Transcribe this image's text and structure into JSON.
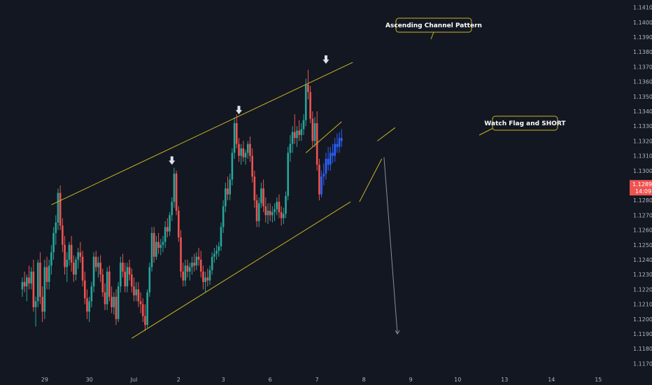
{
  "chart_data": {
    "type": "candlestick",
    "instrument_price": "1.12899",
    "countdown": "14:09",
    "ylim": [
      1.1165,
      1.1415
    ],
    "y_ticks": [
      "1.14100",
      "1.14000",
      "1.13900",
      "1.13800",
      "1.13700",
      "1.13600",
      "1.13500",
      "1.13400",
      "1.13300",
      "1.13200",
      "1.13100",
      "1.13000",
      "1.12900",
      "1.12800",
      "1.12700",
      "1.12600",
      "1.12500",
      "1.12400",
      "1.12300",
      "1.12200",
      "1.12100",
      "1.12000",
      "1.11900",
      "1.11800",
      "1.11700"
    ],
    "x_ticks": [
      "29",
      "30",
      "Jul",
      "2",
      "3",
      "6",
      "7",
      "8",
      "9",
      "10",
      "13",
      "14",
      "15"
    ],
    "x_tick_index": [
      10,
      30,
      50,
      70,
      90,
      111,
      132,
      153,
      174,
      195,
      216,
      237,
      258
    ],
    "x_range": [
      -10,
      272
    ],
    "last_price": 1.12899,
    "candles": [
      [
        1.122,
        1.1228,
        1.1215,
        1.1225
      ],
      [
        1.1225,
        1.1232,
        1.1218,
        1.1222
      ],
      [
        1.1222,
        1.123,
        1.1212,
        1.1228
      ],
      [
        1.1228,
        1.1236,
        1.122,
        1.1224
      ],
      [
        1.1224,
        1.1235,
        1.122,
        1.1232
      ],
      [
        1.1232,
        1.124,
        1.1205,
        1.1208
      ],
      [
        1.1208,
        1.1215,
        1.1195,
        1.1212
      ],
      [
        1.1212,
        1.124,
        1.1208,
        1.1238
      ],
      [
        1.1238,
        1.1245,
        1.121,
        1.1215
      ],
      [
        1.1215,
        1.1222,
        1.1198,
        1.1205
      ],
      [
        1.1205,
        1.124,
        1.12,
        1.1235
      ],
      [
        1.1235,
        1.1242,
        1.122,
        1.1225
      ],
      [
        1.1225,
        1.124,
        1.122,
        1.1236
      ],
      [
        1.1236,
        1.125,
        1.123,
        1.1245
      ],
      [
        1.1245,
        1.1262,
        1.124,
        1.1258
      ],
      [
        1.1258,
        1.127,
        1.125,
        1.1265
      ],
      [
        1.1265,
        1.1288,
        1.126,
        1.1285
      ],
      [
        1.1285,
        1.129,
        1.126,
        1.1263
      ],
      [
        1.1263,
        1.1268,
        1.1245,
        1.125
      ],
      [
        1.125,
        1.1256,
        1.123,
        1.1235
      ],
      [
        1.1235,
        1.1245,
        1.1225,
        1.124
      ],
      [
        1.124,
        1.1252,
        1.1236,
        1.125
      ],
      [
        1.125,
        1.1256,
        1.1232,
        1.1238
      ],
      [
        1.1238,
        1.1243,
        1.1225,
        1.123
      ],
      [
        1.123,
        1.1242,
        1.1226,
        1.124
      ],
      [
        1.124,
        1.1248,
        1.1234,
        1.1245
      ],
      [
        1.1245,
        1.1252,
        1.1238,
        1.1242
      ],
      [
        1.1242,
        1.1246,
        1.1222,
        1.1226
      ],
      [
        1.1226,
        1.1232,
        1.121,
        1.1214
      ],
      [
        1.1214,
        1.122,
        1.12,
        1.1205
      ],
      [
        1.1205,
        1.1215,
        1.1198,
        1.1212
      ],
      [
        1.1212,
        1.1225,
        1.1208,
        1.1222
      ],
      [
        1.1222,
        1.1245,
        1.1218,
        1.1242
      ],
      [
        1.1242,
        1.1246,
        1.1232,
        1.1235
      ],
      [
        1.1235,
        1.1242,
        1.1228,
        1.1238
      ],
      [
        1.1238,
        1.1243,
        1.1225,
        1.123
      ],
      [
        1.123,
        1.1234,
        1.1215,
        1.1218
      ],
      [
        1.1218,
        1.1224,
        1.1206,
        1.121
      ],
      [
        1.121,
        1.1235,
        1.1206,
        1.1232
      ],
      [
        1.1232,
        1.1236,
        1.1212,
        1.1215
      ],
      [
        1.1215,
        1.1222,
        1.1204,
        1.1208
      ],
      [
        1.1208,
        1.1218,
        1.1203,
        1.1215
      ],
      [
        1.1215,
        1.122,
        1.1196,
        1.12
      ],
      [
        1.12,
        1.1225,
        1.1198,
        1.1222
      ],
      [
        1.1222,
        1.1242,
        1.1218,
        1.1238
      ],
      [
        1.1238,
        1.1244,
        1.1228,
        1.1232
      ],
      [
        1.1232,
        1.1238,
        1.1218,
        1.1222
      ],
      [
        1.1222,
        1.1238,
        1.1218,
        1.1235
      ],
      [
        1.1235,
        1.124,
        1.1226,
        1.123
      ],
      [
        1.123,
        1.1234,
        1.1218,
        1.1222
      ],
      [
        1.1222,
        1.1228,
        1.1212,
        1.1216
      ],
      [
        1.1216,
        1.1225,
        1.1212,
        1.122
      ],
      [
        1.122,
        1.1225,
        1.1208,
        1.1212
      ],
      [
        1.1212,
        1.1218,
        1.1204,
        1.121
      ],
      [
        1.121,
        1.1214,
        1.1198,
        1.1202
      ],
      [
        1.1202,
        1.121,
        1.1192,
        1.1196
      ],
      [
        1.1196,
        1.122,
        1.1194,
        1.1218
      ],
      [
        1.1218,
        1.1238,
        1.1215,
        1.1235
      ],
      [
        1.1235,
        1.1262,
        1.1232,
        1.1258
      ],
      [
        1.1258,
        1.1262,
        1.1238,
        1.1242
      ],
      [
        1.1242,
        1.1256,
        1.124,
        1.1252
      ],
      [
        1.1252,
        1.1258,
        1.1244,
        1.1248
      ],
      [
        1.1248,
        1.1254,
        1.1243,
        1.125
      ],
      [
        1.125,
        1.1256,
        1.1245,
        1.1252
      ],
      [
        1.1252,
        1.1266,
        1.1248,
        1.1262
      ],
      [
        1.1262,
        1.1268,
        1.1255,
        1.1259
      ],
      [
        1.1259,
        1.1272,
        1.1256,
        1.127
      ],
      [
        1.127,
        1.1282,
        1.1266,
        1.1279
      ],
      [
        1.1279,
        1.1302,
        1.1275,
        1.1298
      ],
      [
        1.1298,
        1.13,
        1.127,
        1.1273
      ],
      [
        1.1273,
        1.1276,
        1.1252,
        1.1255
      ],
      [
        1.1255,
        1.126,
        1.1228,
        1.1232
      ],
      [
        1.1232,
        1.1238,
        1.1222,
        1.1226
      ],
      [
        1.1226,
        1.124,
        1.1222,
        1.1236
      ],
      [
        1.1236,
        1.124,
        1.1228,
        1.1232
      ],
      [
        1.1232,
        1.1238,
        1.1226,
        1.1235
      ],
      [
        1.1235,
        1.1242,
        1.123,
        1.1238
      ],
      [
        1.1238,
        1.1244,
        1.1232,
        1.1236
      ],
      [
        1.1236,
        1.1245,
        1.1233,
        1.1242
      ],
      [
        1.1242,
        1.1248,
        1.1236,
        1.124
      ],
      [
        1.124,
        1.1246,
        1.1228,
        1.1232
      ],
      [
        1.1232,
        1.1236,
        1.122,
        1.1225
      ],
      [
        1.1225,
        1.1232,
        1.1218,
        1.1228
      ],
      [
        1.1228,
        1.1234,
        1.1222,
        1.1226
      ],
      [
        1.1226,
        1.1236,
        1.1223,
        1.1233
      ],
      [
        1.1233,
        1.1245,
        1.123,
        1.1242
      ],
      [
        1.1242,
        1.1248,
        1.1238,
        1.1244
      ],
      [
        1.1244,
        1.125,
        1.124,
        1.1246
      ],
      [
        1.1246,
        1.1252,
        1.1242,
        1.1249
      ],
      [
        1.1249,
        1.1265,
        1.1246,
        1.1262
      ],
      [
        1.1262,
        1.128,
        1.1258,
        1.1276
      ],
      [
        1.1276,
        1.1292,
        1.1272,
        1.1288
      ],
      [
        1.1288,
        1.1296,
        1.128,
        1.1284
      ],
      [
        1.1284,
        1.1298,
        1.128,
        1.1294
      ],
      [
        1.1294,
        1.1315,
        1.129,
        1.1312
      ],
      [
        1.1312,
        1.1336,
        1.1308,
        1.1332
      ],
      [
        1.1332,
        1.1338,
        1.1315,
        1.1318
      ],
      [
        1.1318,
        1.1322,
        1.1306,
        1.131
      ],
      [
        1.131,
        1.1318,
        1.1304,
        1.1315
      ],
      [
        1.1315,
        1.132,
        1.1306,
        1.1309
      ],
      [
        1.1309,
        1.1314,
        1.1304,
        1.1312
      ],
      [
        1.1312,
        1.132,
        1.1308,
        1.1318
      ],
      [
        1.1318,
        1.1323,
        1.1306,
        1.131
      ],
      [
        1.131,
        1.1315,
        1.1292,
        1.1296
      ],
      [
        1.1296,
        1.13,
        1.1275,
        1.128
      ],
      [
        1.128,
        1.1284,
        1.1262,
        1.1266
      ],
      [
        1.1266,
        1.1282,
        1.1262,
        1.1278
      ],
      [
        1.1278,
        1.1292,
        1.1275,
        1.1288
      ],
      [
        1.1288,
        1.1294,
        1.1272,
        1.1276
      ],
      [
        1.1276,
        1.1282,
        1.1265,
        1.127
      ],
      [
        1.127,
        1.1278,
        1.1264,
        1.1273
      ],
      [
        1.1273,
        1.1278,
        1.1266,
        1.127
      ],
      [
        1.127,
        1.1276,
        1.1265,
        1.1272
      ],
      [
        1.1272,
        1.1278,
        1.1266,
        1.1274
      ],
      [
        1.1274,
        1.1282,
        1.127,
        1.1279
      ],
      [
        1.1279,
        1.1284,
        1.1268,
        1.1272
      ],
      [
        1.1272,
        1.1276,
        1.1263,
        1.1268
      ],
      [
        1.1268,
        1.1275,
        1.1264,
        1.1271
      ],
      [
        1.1271,
        1.1286,
        1.1268,
        1.1283
      ],
      [
        1.1283,
        1.1316,
        1.128,
        1.1312
      ],
      [
        1.1312,
        1.1324,
        1.1306,
        1.1318
      ],
      [
        1.1318,
        1.133,
        1.1312,
        1.1326
      ],
      [
        1.1326,
        1.1338,
        1.1318,
        1.1322
      ],
      [
        1.1322,
        1.133,
        1.1316,
        1.1327
      ],
      [
        1.1327,
        1.1334,
        1.132,
        1.1324
      ],
      [
        1.1324,
        1.1332,
        1.132,
        1.1328
      ],
      [
        1.1328,
        1.1338,
        1.1324,
        1.1334
      ],
      [
        1.1334,
        1.1362,
        1.133,
        1.1358
      ],
      [
        1.1358,
        1.1368,
        1.1348,
        1.1353
      ],
      [
        1.1353,
        1.1357,
        1.1332,
        1.1335
      ],
      [
        1.1335,
        1.134,
        1.1316,
        1.132
      ],
      [
        1.132,
        1.1336,
        1.1316,
        1.1332
      ],
      [
        1.1332,
        1.134,
        1.13,
        1.1304
      ],
      [
        1.1304,
        1.1308,
        1.128,
        1.1284
      ]
    ],
    "projection": [
      [
        1.1284,
        1.13,
        1.1282,
        1.1296
      ],
      [
        1.1296,
        1.1305,
        1.129,
        1.1298
      ],
      [
        1.1298,
        1.1312,
        1.1294,
        1.1308
      ],
      [
        1.1308,
        1.1316,
        1.13,
        1.1304
      ],
      [
        1.1304,
        1.1316,
        1.13,
        1.1312
      ],
      [
        1.1312,
        1.1318,
        1.1305,
        1.131
      ],
      [
        1.131,
        1.1322,
        1.1306,
        1.1318
      ],
      [
        1.1318,
        1.1325,
        1.1312,
        1.1316
      ],
      [
        1.1316,
        1.1326,
        1.1312,
        1.1322
      ],
      [
        1.1322,
        1.1328,
        1.1316,
        1.132
      ]
    ],
    "annotations": [
      {
        "text": "Ascending Channel Pattern"
      },
      {
        "text": "Watch Flag and SHORT"
      }
    ],
    "colors": {
      "background": "#131722",
      "up": "#26a69a",
      "down": "#ef5350",
      "projection": "#2962ff",
      "trendline": "#c9b621",
      "price_label": "#ef5350",
      "axis_text": "#b2b5be"
    }
  }
}
